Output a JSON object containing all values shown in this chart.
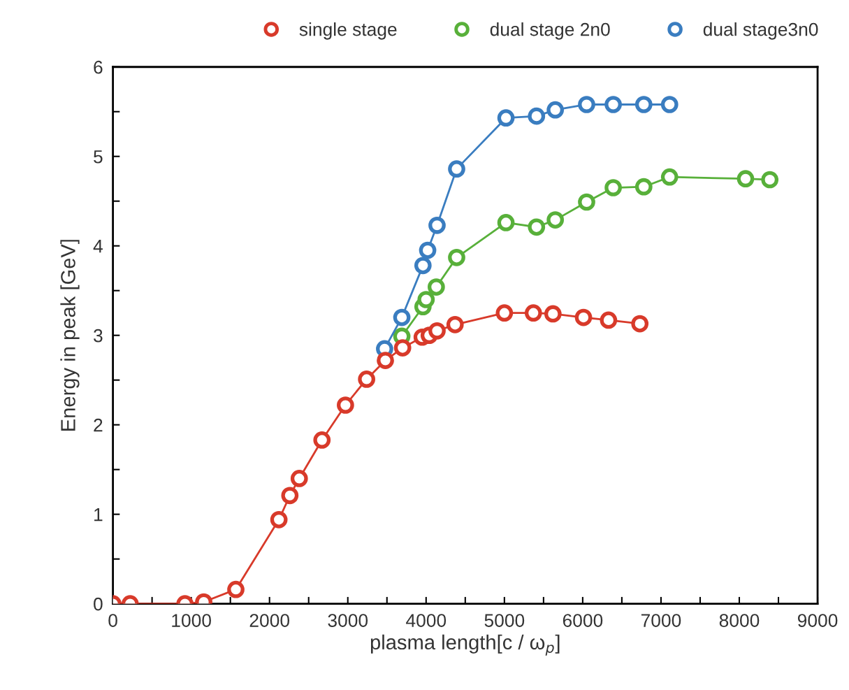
{
  "chart_data": {
    "type": "line",
    "xlabel": "plasma length[c / ω$_{p}$]",
    "ylabel": "Energy in peak [GeV]",
    "xlim": [
      0,
      9000
    ],
    "ylim": [
      0,
      6
    ],
    "xticks": [
      0,
      {
        "value": 500,
        "label": null
      },
      1000,
      {
        "value": 1500,
        "label": null
      },
      2000,
      {
        "value": 2500,
        "label": null
      },
      3000,
      {
        "value": 3500,
        "label": null
      },
      4000,
      {
        "value": 4500,
        "label": null
      },
      5000,
      {
        "value": 5500,
        "label": null
      },
      6000,
      {
        "value": 6500,
        "label": null
      },
      7000,
      {
        "value": 7500,
        "label": null
      },
      8000,
      {
        "value": 8500,
        "label": null
      },
      9000
    ],
    "yticks": [
      0,
      {
        "value": 0.5,
        "label": null
      },
      1,
      {
        "value": 1.5,
        "label": null
      },
      2,
      {
        "value": 2.5,
        "label": null
      },
      3,
      {
        "value": 3.5,
        "label": null
      },
      4,
      {
        "value": 4.5,
        "label": null
      },
      5,
      {
        "value": 5.5,
        "label": null
      },
      6
    ],
    "grid": false,
    "legend": "top",
    "marker": "circle",
    "line_style": "solid",
    "series": [
      {
        "name": "single stage",
        "color": "#d83a2a",
        "x": [
          0,
          220,
          920,
          1160,
          1570,
          2120,
          2260,
          2380,
          2670,
          2970,
          3240,
          3480,
          3700,
          3950,
          4040,
          4140,
          4370,
          5000,
          5370,
          5620,
          6010,
          6330,
          6730
        ],
        "values": [
          0,
          0,
          0,
          0.02,
          0.16,
          0.94,
          1.21,
          1.4,
          1.83,
          2.22,
          2.51,
          2.72,
          2.86,
          2.98,
          3.0,
          3.05,
          3.12,
          3.25,
          3.25,
          3.24,
          3.2,
          3.17,
          3.13
        ]
      },
      {
        "name": "dual stage 2n0",
        "color": "#58b03a",
        "x": [
          3690,
          3960,
          4000,
          4130,
          4390,
          5020,
          5410,
          5650,
          6050,
          6390,
          6780,
          7110,
          8080,
          8390
        ],
        "values": [
          2.99,
          3.32,
          3.4,
          3.54,
          3.87,
          4.26,
          4.21,
          4.29,
          4.49,
          4.65,
          4.66,
          4.77,
          4.75,
          4.74
        ]
      },
      {
        "name": "dual stage3n0",
        "color": "#3a7dc0",
        "x": [
          3470,
          3690,
          3960,
          4020,
          4140,
          4390,
          5020,
          5410,
          5650,
          6050,
          6390,
          6780,
          7110
        ],
        "values": [
          2.85,
          3.2,
          3.78,
          3.95,
          4.23,
          4.86,
          5.43,
          5.45,
          5.52,
          5.58,
          5.58,
          5.58,
          5.58
        ]
      }
    ]
  }
}
